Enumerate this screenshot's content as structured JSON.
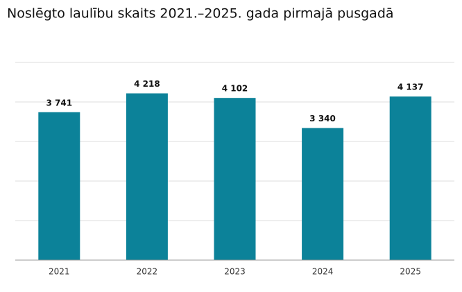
{
  "chart_data": {
    "type": "bar",
    "title": "Noslēgto laulību skaits 2021.–2025. gada pirmajā pusgadā",
    "categories": [
      "2021",
      "2022",
      "2023",
      "2024",
      "2025"
    ],
    "values": [
      3741,
      4218,
      4102,
      3340,
      4137
    ],
    "value_labels": [
      "3 741",
      "4 218",
      "4 102",
      "3 340",
      "4 137"
    ],
    "color": "#0c8299",
    "ylim": [
      0,
      5000
    ],
    "yticks": [
      0,
      1000,
      2000,
      3000,
      4000,
      5000
    ],
    "ytick_labels": false,
    "grid": true
  }
}
